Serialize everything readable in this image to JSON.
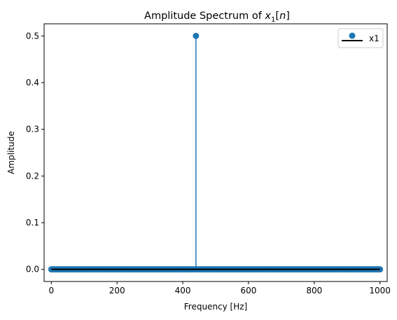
{
  "chart_data": {
    "type": "stem",
    "title": {
      "prefix": "Amplitude Spectrum of ",
      "var": "x",
      "sub": "1",
      "open": "[",
      "arg": "n",
      "close": "]"
    },
    "xlabel": "Frequency [Hz]",
    "ylabel": "Amplitude",
    "xlim": [
      -22,
      1022
    ],
    "ylim": [
      -0.026,
      0.526
    ],
    "xticks": [
      0,
      200,
      400,
      600,
      800,
      1000
    ],
    "xtick_labels": [
      "0",
      "200",
      "400",
      "600",
      "800",
      "1000"
    ],
    "yticks": [
      0.0,
      0.1,
      0.2,
      0.3,
      0.4,
      0.5
    ],
    "ytick_labels": [
      "0.0",
      "0.1",
      "0.2",
      "0.3",
      "0.4",
      "0.5"
    ],
    "series": [
      {
        "name": "x1",
        "color": "#1f77b4",
        "baseline_color": "#000000",
        "x_start": 0,
        "x_end": 1000,
        "x_step": 4,
        "default_value": 0,
        "peaks": [
          {
            "x": 440,
            "y": 0.5
          }
        ]
      }
    ],
    "legend": {
      "location": "top-right",
      "label": "x1"
    },
    "grid": false
  }
}
